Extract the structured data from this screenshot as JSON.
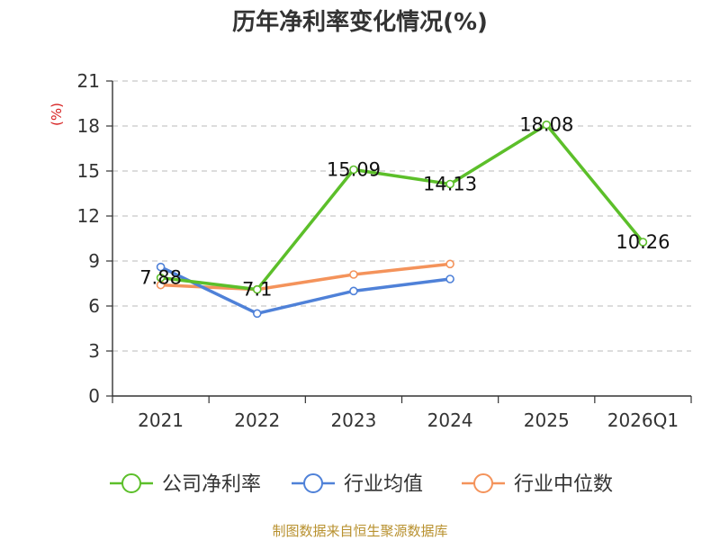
{
  "chart_data": {
    "type": "line",
    "title": "历年净利率变化情况(%)",
    "ylabel": "(%)",
    "categories": [
      "2021",
      "2022",
      "2023",
      "2024",
      "2025",
      "2026Q1"
    ],
    "ylim": [
      0,
      21
    ],
    "yticks": [
      0,
      3,
      6,
      9,
      12,
      15,
      18,
      21
    ],
    "grid": true,
    "legend_position": "bottom",
    "series": [
      {
        "name": "公司净利率",
        "color": "#5cbf2a",
        "values": [
          7.88,
          7.1,
          15.09,
          14.13,
          18.08,
          10.26
        ],
        "labels": [
          "7.88",
          "7.1",
          "15.09",
          "14.13",
          "18.08",
          "10.26"
        ]
      },
      {
        "name": "行业均值",
        "color": "#4f81d8",
        "values": [
          8.6,
          5.5,
          7.0,
          7.8,
          null,
          null
        ]
      },
      {
        "name": "行业中位数",
        "color": "#f4935b",
        "values": [
          7.4,
          7.1,
          8.1,
          8.8,
          null,
          null
        ]
      }
    ]
  },
  "source": "制图数据来自恒生聚源数据库"
}
